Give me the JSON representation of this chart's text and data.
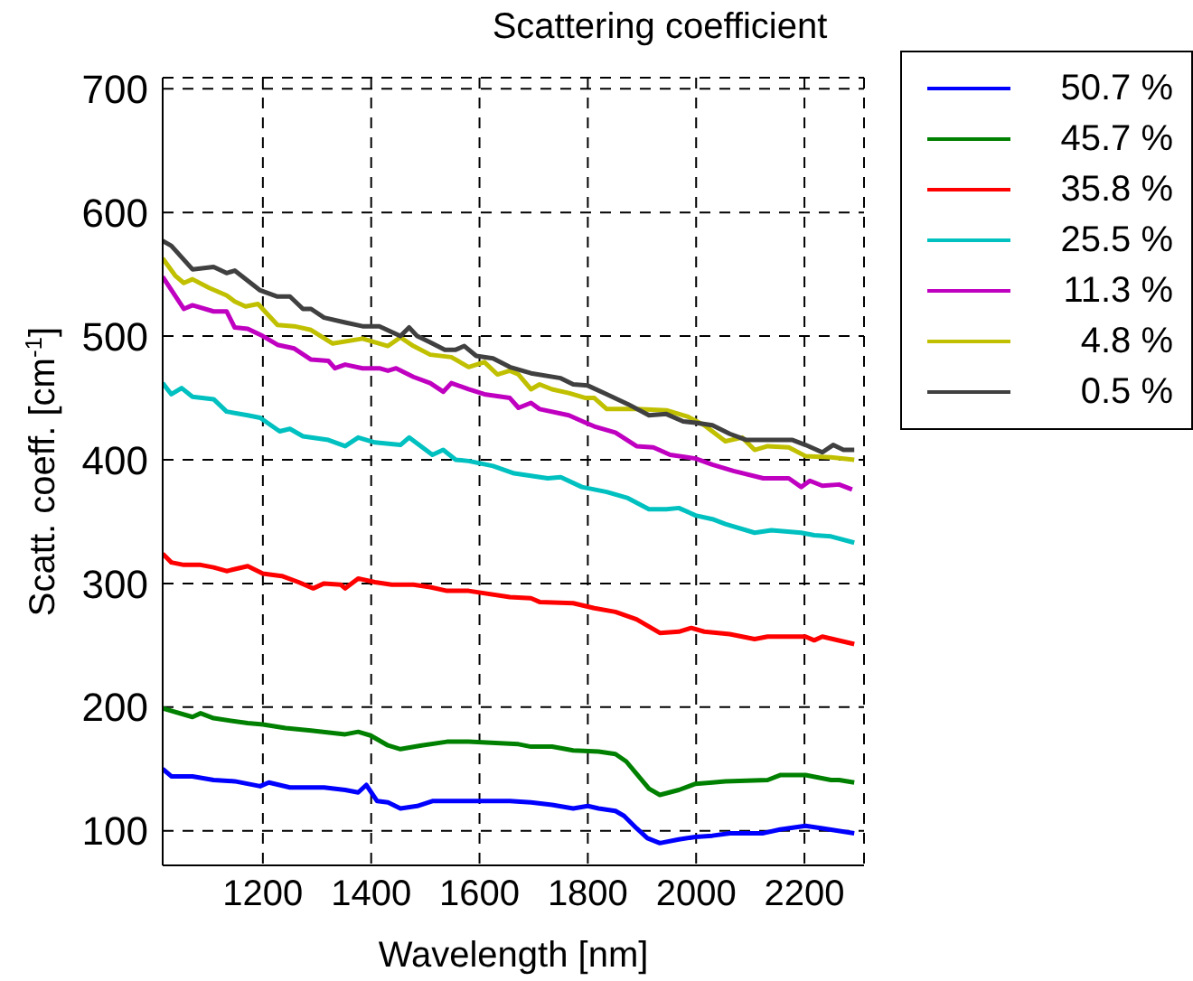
{
  "chart_data": {
    "type": "line",
    "title": "Scattering coefficient",
    "xlabel": "Wavelength [nm]",
    "ylabel": "Scatt. coeff. [cm$^{-1}$]",
    "xlim": [
      1015,
      2310
    ],
    "ylim": [
      72,
      709
    ],
    "xticks": [
      1200,
      1400,
      1600,
      1800,
      2000,
      2200
    ],
    "yticks": [
      100,
      200,
      300,
      400,
      500,
      600,
      700
    ],
    "grid": true,
    "legend": "top right",
    "marker": "none",
    "line_style": "solid",
    "series": [
      {
        "name": "50.7 %",
        "color": "#0000ff",
        "x": [
          1015,
          1031,
          1070,
          1109,
          1148,
          1195,
          1211,
          1250,
          1313,
          1352,
          1376,
          1391,
          1411,
          1431,
          1454,
          1485,
          1513,
          1580,
          1656,
          1695,
          1734,
          1773,
          1800,
          1820,
          1851,
          1867,
          1890,
          1910,
          1933,
          1968,
          1999,
          2030,
          2062,
          2124,
          2155,
          2202,
          2233,
          2292
        ],
        "values": [
          150,
          144,
          144,
          141,
          140,
          136,
          139,
          135,
          135,
          133,
          131,
          137,
          124,
          123,
          118,
          120,
          124,
          124,
          124,
          123,
          121,
          118,
          120,
          118,
          116,
          112,
          102,
          94,
          90,
          93,
          95,
          96,
          98,
          98,
          101,
          104,
          102,
          98
        ]
      },
      {
        "name": "45.7 %",
        "color": "#008000",
        "x": [
          1015,
          1070,
          1085,
          1109,
          1172,
          1200,
          1242,
          1289,
          1352,
          1376,
          1399,
          1431,
          1454,
          1493,
          1540,
          1580,
          1672,
          1695,
          1734,
          1773,
          1820,
          1851,
          1871,
          1890,
          1913,
          1933,
          1968,
          1999,
          2030,
          2054,
          2132,
          2155,
          2202,
          2249,
          2264,
          2292
        ],
        "values": [
          199,
          192,
          195,
          191,
          187,
          186,
          183,
          181,
          178,
          180,
          177,
          169,
          166,
          169,
          172,
          172,
          170,
          168,
          168,
          165,
          164,
          162,
          156,
          146,
          134,
          129,
          133,
          138,
          139,
          140,
          141,
          145,
          145,
          141,
          141,
          139
        ]
      },
      {
        "name": "35.8 %",
        "color": "#ff0000",
        "x": [
          1015,
          1031,
          1054,
          1085,
          1109,
          1133,
          1172,
          1200,
          1235,
          1266,
          1293,
          1313,
          1344,
          1352,
          1376,
          1407,
          1438,
          1478,
          1509,
          1540,
          1580,
          1656,
          1695,
          1711,
          1773,
          1812,
          1851,
          1890,
          1933,
          1968,
          1991,
          2015,
          2062,
          2108,
          2132,
          2202,
          2218,
          2233,
          2292
        ],
        "values": [
          324,
          317,
          315,
          315,
          313,
          310,
          314,
          308,
          306,
          301,
          296,
          300,
          299,
          296,
          304,
          301,
          299,
          299,
          297,
          294,
          294,
          289,
          288,
          285,
          284,
          280,
          277,
          271,
          260,
          261,
          264,
          261,
          259,
          255,
          257,
          257,
          254,
          257,
          251
        ]
      },
      {
        "name": "25.5 %",
        "color": "#00c0c0",
        "x": [
          1015,
          1031,
          1050,
          1070,
          1109,
          1133,
          1172,
          1195,
          1231,
          1250,
          1274,
          1321,
          1352,
          1376,
          1407,
          1454,
          1470,
          1513,
          1533,
          1556,
          1580,
          1625,
          1664,
          1695,
          1726,
          1750,
          1789,
          1835,
          1874,
          1913,
          1945,
          1968,
          1999,
          2030,
          2054,
          2108,
          2139,
          2194,
          2218,
          2249,
          2292
        ],
        "values": [
          462,
          453,
          458,
          451,
          449,
          439,
          436,
          434,
          423,
          425,
          419,
          416,
          411,
          418,
          414,
          412,
          418,
          404,
          408,
          400,
          399,
          395,
          389,
          387,
          385,
          386,
          378,
          374,
          369,
          360,
          360,
          361,
          355,
          352,
          348,
          341,
          343,
          341,
          339,
          338,
          333
        ]
      },
      {
        "name": "11.3 %",
        "color": "#c000c0",
        "x": [
          1015,
          1054,
          1070,
          1109,
          1133,
          1148,
          1172,
          1200,
          1227,
          1258,
          1289,
          1321,
          1333,
          1352,
          1384,
          1415,
          1431,
          1446,
          1478,
          1509,
          1533,
          1548,
          1580,
          1609,
          1656,
          1672,
          1695,
          1711,
          1765,
          1796,
          1812,
          1851,
          1890,
          1921,
          1952,
          1999,
          2030,
          2069,
          2124,
          2171,
          2194,
          2210,
          2233,
          2264,
          2288
        ],
        "values": [
          548,
          522,
          525,
          520,
          520,
          507,
          506,
          500,
          493,
          490,
          481,
          480,
          474,
          477,
          474,
          474,
          472,
          474,
          467,
          462,
          455,
          462,
          457,
          453,
          450,
          442,
          446,
          441,
          436,
          430,
          427,
          422,
          411,
          410,
          404,
          401,
          396,
          391,
          385,
          385,
          378,
          383,
          379,
          380,
          376
        ]
      },
      {
        "name": "4.8 %",
        "color": "#c0c000",
        "x": [
          1015,
          1038,
          1054,
          1070,
          1101,
          1133,
          1148,
          1168,
          1191,
          1227,
          1258,
          1289,
          1329,
          1384,
          1431,
          1454,
          1478,
          1509,
          1548,
          1580,
          1609,
          1633,
          1656,
          1672,
          1695,
          1711,
          1734,
          1765,
          1796,
          1812,
          1835,
          1890,
          1945,
          1984,
          2015,
          2054,
          2085,
          2108,
          2132,
          2171,
          2202,
          2249,
          2292
        ],
        "values": [
          563,
          549,
          543,
          546,
          539,
          533,
          528,
          524,
          526,
          509,
          508,
          505,
          494,
          498,
          492,
          499,
          492,
          485,
          483,
          475,
          479,
          469,
          472,
          469,
          457,
          461,
          457,
          454,
          450,
          450,
          441,
          441,
          440,
          435,
          428,
          415,
          418,
          408,
          411,
          410,
          403,
          402,
          400
        ]
      },
      {
        "name": "0.5 %",
        "color": "#404040",
        "x": [
          1015,
          1031,
          1070,
          1109,
          1133,
          1148,
          1195,
          1227,
          1250,
          1274,
          1289,
          1313,
          1352,
          1384,
          1415,
          1454,
          1470,
          1485,
          1509,
          1536,
          1556,
          1572,
          1594,
          1625,
          1656,
          1695,
          1750,
          1773,
          1800,
          1835,
          1874,
          1913,
          1945,
          1976,
          1999,
          2030,
          2062,
          2093,
          2132,
          2178,
          2202,
          2233,
          2253,
          2272,
          2292
        ],
        "values": [
          577,
          573,
          554,
          556,
          551,
          553,
          537,
          532,
          532,
          522,
          522,
          515,
          511,
          508,
          508,
          500,
          507,
          500,
          495,
          489,
          489,
          492,
          484,
          482,
          475,
          470,
          466,
          461,
          460,
          453,
          445,
          436,
          437,
          431,
          430,
          428,
          421,
          416,
          416,
          416,
          412,
          406,
          412,
          408,
          408
        ]
      }
    ]
  }
}
